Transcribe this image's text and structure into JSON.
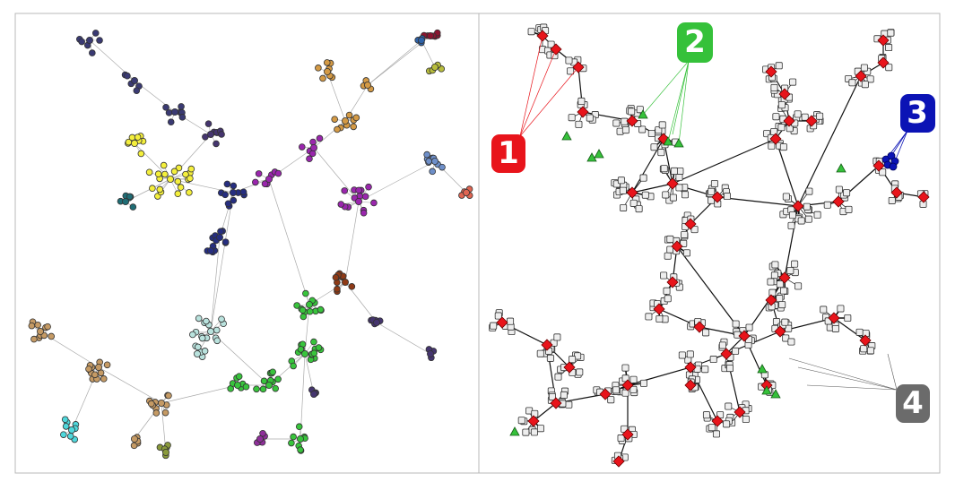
{
  "figure": {
    "panels": [
      {
        "id": "left",
        "description_key": "community-colored-network"
      },
      {
        "id": "right",
        "description_key": "node-role-network"
      }
    ]
  },
  "colors": {
    "edge_light": "#aaaaaa",
    "edge_dark": "#111111",
    "node_stroke": "#333333",
    "square_fill": "#eeeeee",
    "diamond_fill": "#e8141b",
    "triangle_fill": "#35c13a",
    "highlight_dark_blue": "#0b13b5",
    "community": {
      "navy": "#3a3a73",
      "darkblue": "#262e80",
      "yellow": "#f4ef3c",
      "teal": "#1f6d75",
      "purple": "#9a26ad",
      "brown_orange": "#d49a45",
      "olive_yellow": "#b8bd3c",
      "blue_steel": "#6e8fc9",
      "red_salmon": "#e06552",
      "maroon": "#8a1530",
      "blue_mid": "#2e62a8",
      "rust": "#8e3a16",
      "tan": "#c59a64",
      "green": "#38c43c",
      "light_teal": "#b9e2dd",
      "cyan": "#4fd8dc",
      "olive": "#8a9a3c",
      "indigo": "#45356f",
      "magenta": "#8f2f9a"
    }
  },
  "callouts": [
    {
      "label": "1",
      "color": "#e8141b"
    },
    {
      "label": "2",
      "color": "#35c13a"
    },
    {
      "label": "3",
      "color": "#0b13b5"
    },
    {
      "label": "4",
      "color": "#6b6b6b"
    }
  ]
}
